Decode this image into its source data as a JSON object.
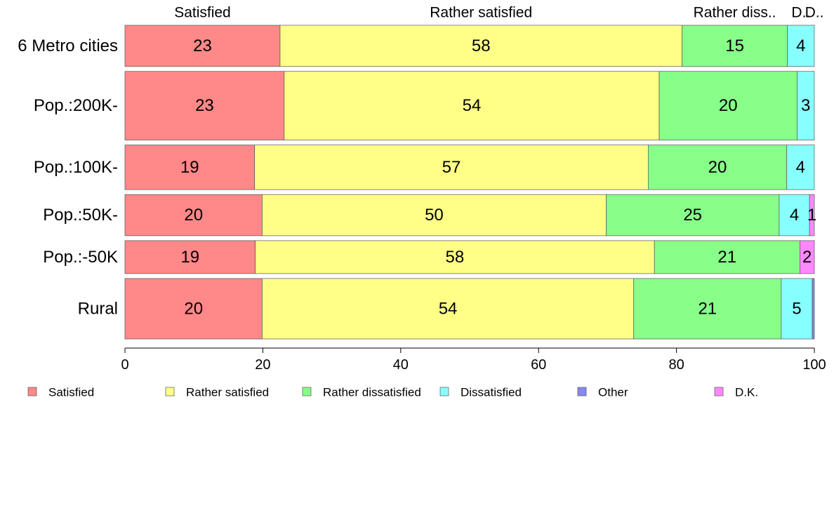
{
  "chart_data": {
    "type": "bar",
    "orientation": "horizontal",
    "stacked": true,
    "categories": [
      "6 Metro cities",
      "Pop.:200K-",
      "Pop.:100K-",
      "Pop.:50K-",
      "Pop.:-50K",
      "Rural"
    ],
    "row_weights": [
      0.6,
      1.0,
      0.65,
      0.6,
      0.48,
      0.88
    ],
    "top_labels": [
      "Satisfied",
      "Rather satisfied",
      "Rather diss..",
      "D..",
      "D.."
    ],
    "series": [
      {
        "name": "Satisfied",
        "color": "#ff8888",
        "values": [
          22.5,
          23.1,
          18.8,
          19.9,
          18.9,
          19.9
        ]
      },
      {
        "name": "Rather satisfied",
        "color": "#ffff88",
        "values": [
          58.3,
          54.4,
          57.1,
          49.9,
          57.9,
          53.9
        ]
      },
      {
        "name": "Rather dissatisfied",
        "color": "#88ff88",
        "values": [
          15.3,
          20.0,
          20.1,
          25.1,
          21.1,
          21.4
        ]
      },
      {
        "name": "Dissatisfied",
        "color": "#88ffff",
        "values": [
          3.9,
          2.5,
          4.0,
          4.4,
          0.0,
          4.5
        ]
      },
      {
        "name": "Other",
        "color": "#8888ee",
        "values": [
          0.0,
          0.0,
          0.0,
          0.0,
          0.0,
          0.3
        ]
      },
      {
        "name": "D.K.",
        "color": "#ff88ff",
        "values": [
          0.0,
          0.0,
          0.0,
          0.7,
          2.1,
          0.0
        ]
      }
    ],
    "xlim": [
      0,
      100
    ],
    "xticks": [
      0,
      20,
      40,
      60,
      80,
      100
    ],
    "xlabel": "",
    "ylabel": "",
    "title": "",
    "legend_position": "bottom",
    "grid": false
  }
}
